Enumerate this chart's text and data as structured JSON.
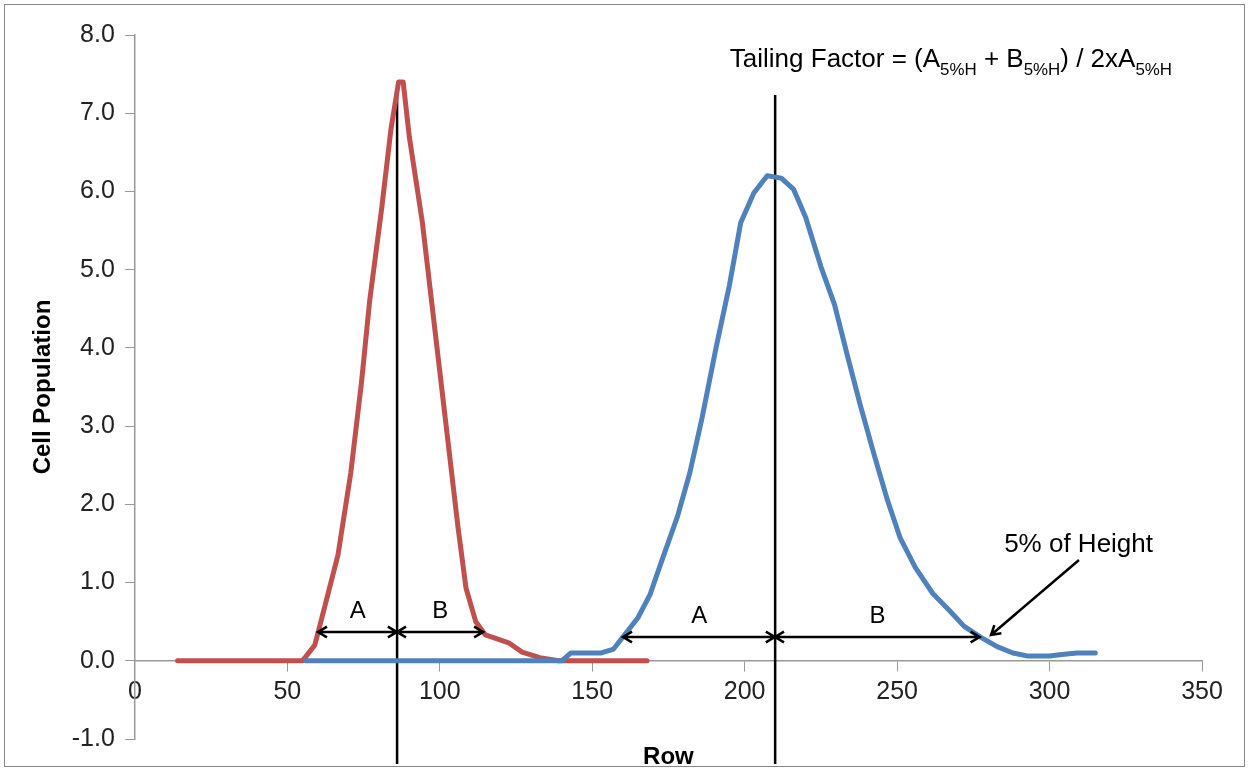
{
  "chart_data": {
    "type": "line",
    "xlabel": "Row",
    "ylabel": "Cell Population",
    "series": [
      {
        "color": "#4f81bd",
        "x": [
          56,
          100,
          140,
          143,
          153,
          157,
          160,
          165,
          169,
          173,
          178,
          182,
          186,
          190.6,
          195,
          198.7,
          203,
          207.4,
          212,
          216,
          220,
          225,
          229.5,
          233.7,
          237.9,
          242.5,
          246.7,
          251,
          256,
          261.7,
          267,
          272,
          277.5,
          282.8,
          288,
          293,
          300,
          304,
          309,
          315
        ],
        "values": [
          0,
          0,
          0,
          0.1,
          0.1,
          0.15,
          0.3,
          0.55,
          0.85,
          1.3,
          1.85,
          2.4,
          3.1,
          4.0,
          4.8,
          5.6,
          5.98,
          6.2,
          6.17,
          6.03,
          5.67,
          5.04,
          4.55,
          3.9,
          3.27,
          2.63,
          2.07,
          1.57,
          1.19,
          0.86,
          0.65,
          0.44,
          0.3,
          0.18,
          0.1,
          0.06,
          0.06,
          0.08,
          0.1,
          0.1
        ]
      },
      {
        "color": "#c0504d",
        "x": [
          14,
          55,
          59,
          62,
          66.6,
          70.8,
          74.3,
          77,
          81,
          84,
          86.5,
          88,
          90,
          94.3,
          97,
          100,
          103,
          106,
          108.6,
          111.8,
          115,
          122.6,
          127,
          132.8,
          139,
          150,
          168
        ],
        "values": [
          0,
          0,
          0.2,
          0.65,
          1.35,
          2.4,
          3.55,
          4.6,
          5.8,
          6.8,
          7.4,
          7.4,
          6.7,
          5.6,
          4.7,
          3.7,
          2.7,
          1.7,
          0.93,
          0.5,
          0.33,
          0.23,
          0.11,
          0.04,
          0,
          0,
          0
        ]
      }
    ],
    "xlim": [
      0,
      350
    ],
    "xticks": [
      0,
      50,
      100,
      150,
      200,
      250,
      300,
      350
    ],
    "ylim": [
      -1,
      8
    ],
    "yticks": [
      {
        "value": -1,
        "label": "-1.0"
      },
      {
        "value": 0,
        "label": "0.0"
      },
      {
        "value": 1,
        "label": "1.0"
      },
      {
        "value": 2,
        "label": "2.0"
      },
      {
        "value": 3,
        "label": "3.0"
      },
      {
        "value": 4,
        "label": "4.0"
      },
      {
        "value": 5,
        "label": "5.0"
      },
      {
        "value": 6,
        "label": "6.0"
      },
      {
        "value": 7,
        "label": "7.0"
      },
      {
        "value": 8,
        "label": "8.0"
      }
    ],
    "grid": false,
    "legend": false,
    "marker": "none",
    "line_style": "solid",
    "ref_lines": [
      {
        "axis": "x",
        "value": 86,
        "color": "#000000"
      },
      {
        "axis": "x",
        "value": 210,
        "color": "#000000"
      }
    ],
    "annotations": [
      "Tailing Factor = (A$_{5%H}$ + B$_{5%H}$) / 2xA$_{5%H}$",
      "A",
      "B",
      "A",
      "B",
      {
        "text": "5% of Height",
        "x": 280,
        "y": 0.3
      }
    ]
  }
}
